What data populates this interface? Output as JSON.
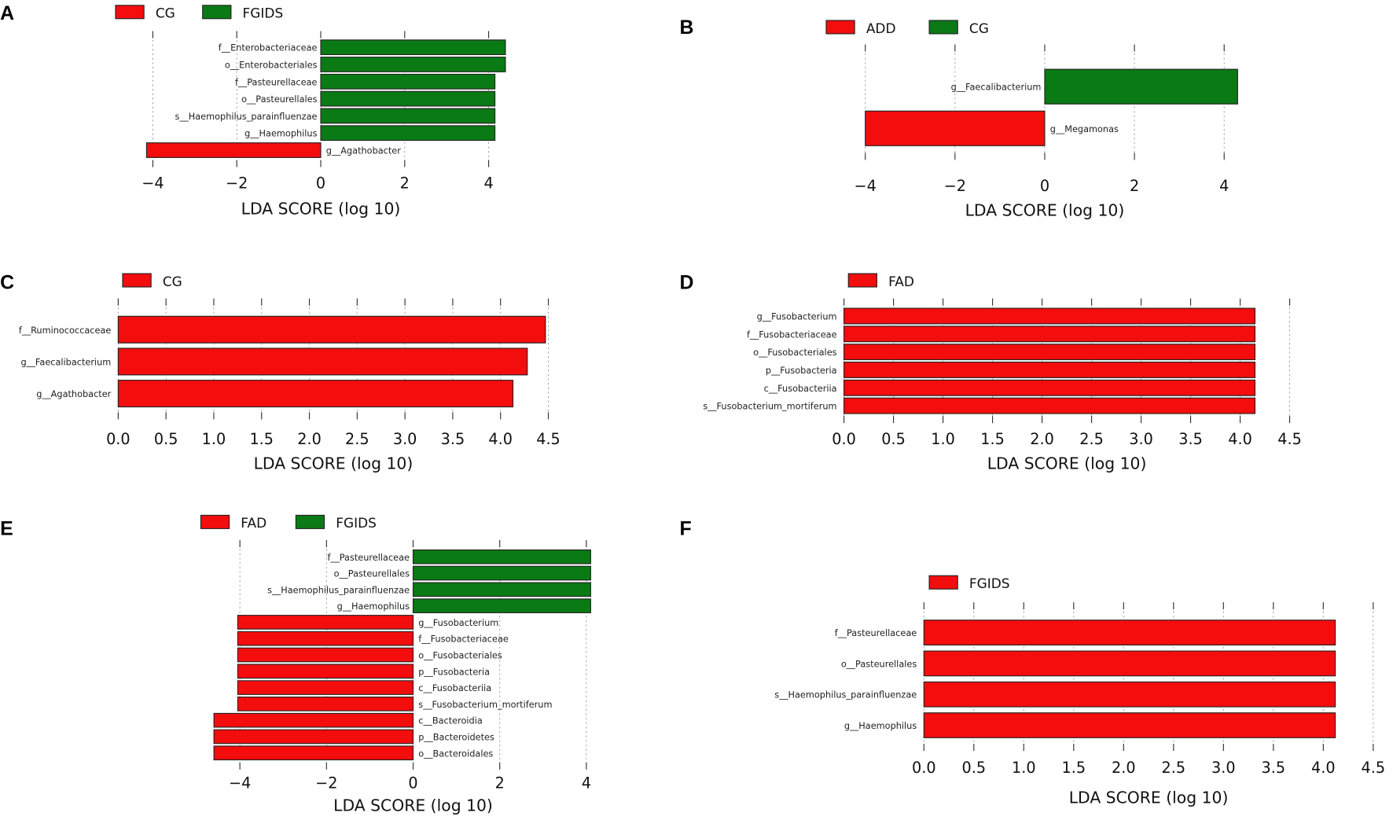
{
  "colors": {
    "red": "#f40d0d",
    "green": "#0a7a14"
  },
  "chart_data": [
    {
      "panel": "A",
      "type": "bar",
      "orientation": "horizontal",
      "legend": [
        {
          "name": "CG",
          "color": "#f40d0d"
        },
        {
          "name": "FGIDS",
          "color": "#0a7a14"
        }
      ],
      "xlabel": "LDA SCORE (log 10)",
      "xlim": [
        -4.2,
        4.5
      ],
      "xticks": [
        -4,
        -2,
        0,
        2,
        4
      ],
      "xtick_labels": [
        "−4",
        "−2",
        "0",
        "2",
        "4"
      ],
      "bars": [
        {
          "label": "f__Enterobacteriaceae",
          "value": 4.4,
          "group": "FGIDS"
        },
        {
          "label": "o__Enterobacteriales",
          "value": 4.4,
          "group": "FGIDS"
        },
        {
          "label": "f__Pasteurellaceae",
          "value": 4.15,
          "group": "FGIDS"
        },
        {
          "label": "o__Pasteurellales",
          "value": 4.15,
          "group": "FGIDS"
        },
        {
          "label": "s__Haemophilus_parainfluenzae",
          "value": 4.15,
          "group": "FGIDS"
        },
        {
          "label": "g__Haemophilus",
          "value": 4.15,
          "group": "FGIDS"
        },
        {
          "label": "g__Agathobacter",
          "value": -4.15,
          "group": "CG"
        }
      ]
    },
    {
      "panel": "B",
      "type": "bar",
      "orientation": "horizontal",
      "legend": [
        {
          "name": "ADD",
          "color": "#f40d0d"
        },
        {
          "name": "CG",
          "color": "#0a7a14"
        }
      ],
      "xlabel": "LDA SCORE (log 10)",
      "xlim": [
        -4.2,
        4.5
      ],
      "xticks": [
        -4,
        -2,
        0,
        2,
        4
      ],
      "xtick_labels": [
        "−4",
        "−2",
        "0",
        "2",
        "4"
      ],
      "bars": [
        {
          "label": "g__Faecalibacterium",
          "value": 4.3,
          "group": "CG"
        },
        {
          "label": "g__Megamonas",
          "value": -4.0,
          "group": "ADD"
        }
      ]
    },
    {
      "panel": "C",
      "type": "bar",
      "orientation": "horizontal",
      "legend": [
        {
          "name": "CG",
          "color": "#f40d0d"
        }
      ],
      "xlabel": "LDA SCORE (log 10)",
      "xlim": [
        0,
        4.5
      ],
      "xticks": [
        0,
        0.5,
        1,
        1.5,
        2,
        2.5,
        3,
        3.5,
        4,
        4.5
      ],
      "xtick_labels": [
        "0.0",
        "0.5",
        "1.0",
        "1.5",
        "2.0",
        "2.5",
        "3.0",
        "3.5",
        "4.0",
        "4.5"
      ],
      "bars": [
        {
          "label": "f__Ruminococcaceae",
          "value": 4.47,
          "group": "CG"
        },
        {
          "label": "g__Faecalibacterium",
          "value": 4.28,
          "group": "CG"
        },
        {
          "label": "g__Agathobacter",
          "value": 4.13,
          "group": "CG"
        }
      ]
    },
    {
      "panel": "D",
      "type": "bar",
      "orientation": "horizontal",
      "legend": [
        {
          "name": "FAD",
          "color": "#f40d0d"
        }
      ],
      "xlabel": "LDA SCORE (log 10)",
      "xlim": [
        0,
        4.5
      ],
      "xticks": [
        0,
        0.5,
        1,
        1.5,
        2,
        2.5,
        3,
        3.5,
        4,
        4.5
      ],
      "xtick_labels": [
        "0.0",
        "0.5",
        "1.0",
        "1.5",
        "2.0",
        "2.5",
        "3.0",
        "3.5",
        "4.0",
        "4.5"
      ],
      "bars": [
        {
          "label": "g__Fusobacterium",
          "value": 4.15,
          "group": "FAD"
        },
        {
          "label": "f__Fusobacteriaceae",
          "value": 4.15,
          "group": "FAD"
        },
        {
          "label": "o__Fusobacteriales",
          "value": 4.15,
          "group": "FAD"
        },
        {
          "label": "p__Fusobacteria",
          "value": 4.15,
          "group": "FAD"
        },
        {
          "label": "c__Fusobacteriia",
          "value": 4.15,
          "group": "FAD"
        },
        {
          "label": "s__Fusobacterium_mortiferum",
          "value": 4.15,
          "group": "FAD"
        }
      ]
    },
    {
      "panel": "E",
      "type": "bar",
      "orientation": "horizontal",
      "legend": [
        {
          "name": "FAD",
          "color": "#f40d0d"
        },
        {
          "name": "FGIDS",
          "color": "#0a7a14"
        }
      ],
      "xlabel": "LDA SCORE (log 10)",
      "xlim": [
        -4.7,
        4.2
      ],
      "xticks": [
        -4,
        -2,
        0,
        2,
        4
      ],
      "xtick_labels": [
        "−4",
        "−2",
        "0",
        "2",
        "4"
      ],
      "bars": [
        {
          "label": "f__Pasteurellaceae",
          "value": 4.1,
          "group": "FGIDS"
        },
        {
          "label": "o__Pasteurellales",
          "value": 4.1,
          "group": "FGIDS"
        },
        {
          "label": "s__Haemophilus_parainfluenzae",
          "value": 4.1,
          "group": "FGIDS"
        },
        {
          "label": "g__Haemophilus",
          "value": 4.1,
          "group": "FGIDS"
        },
        {
          "label": "g__Fusobacterium",
          "value": -4.05,
          "group": "FAD"
        },
        {
          "label": "f__Fusobacteriaceae",
          "value": -4.05,
          "group": "FAD"
        },
        {
          "label": "o__Fusobacteriales",
          "value": -4.05,
          "group": "FAD"
        },
        {
          "label": "p__Fusobacteria",
          "value": -4.05,
          "group": "FAD"
        },
        {
          "label": "c__Fusobacteriia",
          "value": -4.05,
          "group": "FAD"
        },
        {
          "label": "s__Fusobacterium_mortiferum",
          "value": -4.05,
          "group": "FAD"
        },
        {
          "label": "c__Bacteroidia",
          "value": -4.6,
          "group": "FAD"
        },
        {
          "label": "p__Bacteroidetes",
          "value": -4.6,
          "group": "FAD"
        },
        {
          "label": "o__Bacteroidales",
          "value": -4.6,
          "group": "FAD"
        }
      ]
    },
    {
      "panel": "F",
      "type": "bar",
      "orientation": "horizontal",
      "legend": [
        {
          "name": "FGIDS",
          "color": "#f40d0d"
        }
      ],
      "xlabel": "LDA SCORE (log 10)",
      "xlim": [
        0,
        4.5
      ],
      "xticks": [
        0,
        0.5,
        1,
        1.5,
        2,
        2.5,
        3,
        3.5,
        4,
        4.5
      ],
      "xtick_labels": [
        "0.0",
        "0.5",
        "1.0",
        "1.5",
        "2.0",
        "2.5",
        "3.0",
        "3.5",
        "4.0",
        "4.5"
      ],
      "bars": [
        {
          "label": "f__Pasteurellaceae",
          "value": 4.12,
          "group": "FGIDS"
        },
        {
          "label": "o__Pasteurellales",
          "value": 4.12,
          "group": "FGIDS"
        },
        {
          "label": "s__Haemophilus_parainfluenzae",
          "value": 4.12,
          "group": "FGIDS"
        },
        {
          "label": "g__Haemophilus",
          "value": 4.12,
          "group": "FGIDS"
        }
      ]
    }
  ]
}
